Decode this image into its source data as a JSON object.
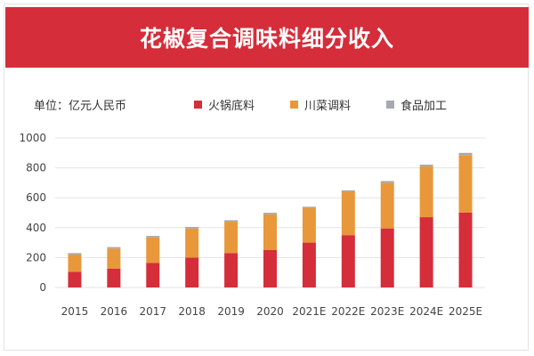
{
  "header": {
    "title": "花椒复合调味料细分收入"
  },
  "unit_label": "单位：亿元人民币",
  "chart_data": {
    "type": "bar",
    "stacked": true,
    "title": "花椒复合调味料细分收入",
    "xlabel": "",
    "ylabel": "",
    "ylim": [
      0,
      1000
    ],
    "yticks": [
      0,
      200,
      400,
      600,
      800,
      1000
    ],
    "grid": true,
    "legend_position": "top",
    "categories": [
      "2015",
      "2016",
      "2017",
      "2018",
      "2019",
      "2020",
      "2021E",
      "2022E",
      "2023E",
      "2024E",
      "2025E"
    ],
    "series": [
      {
        "name": "火锅底料",
        "color": "#d52d3a",
        "values": [
          105,
          125,
          165,
          200,
          230,
          250,
          300,
          350,
          395,
          470,
          500
        ]
      },
      {
        "name": "川菜调料",
        "color": "#e8983a",
        "values": [
          115,
          135,
          170,
          195,
          210,
          240,
          230,
          290,
          305,
          340,
          385
        ]
      },
      {
        "name": "食品加工",
        "color": "#a7a9b0",
        "values": [
          10,
          10,
          10,
          10,
          10,
          10,
          10,
          10,
          12,
          12,
          15
        ]
      }
    ]
  }
}
